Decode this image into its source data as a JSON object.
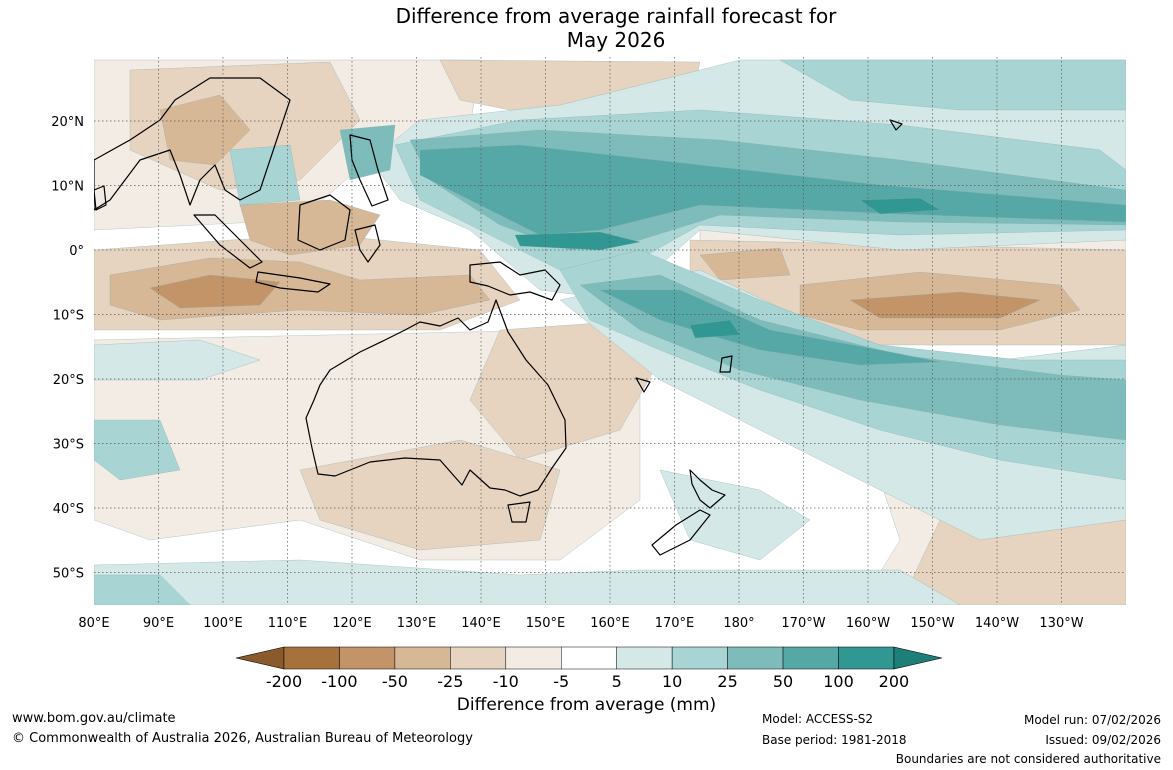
{
  "header": {
    "title_line1": "Difference from average rainfall forecast for",
    "title_line2": "May 2026"
  },
  "map": {
    "lat_labels": [
      "20°N",
      "10°N",
      "0°",
      "10°S",
      "20°S",
      "30°S",
      "40°S",
      "50°S"
    ],
    "lon_labels": [
      "80°E",
      "90°E",
      "100°E",
      "110°E",
      "120°E",
      "130°E",
      "140°E",
      "150°E",
      "160°E",
      "170°E",
      "180°",
      "170°W",
      "160°W",
      "150°W",
      "140°W",
      "130°W"
    ],
    "colors": {
      "dry_200": "#a7713c",
      "dry_100": "#c39468",
      "dry_50": "#d6b796",
      "dry_25": "#e6d4c0",
      "dry_10": "#f2ece4",
      "neutral": "#ffffff",
      "wet_10": "#d3e8e7",
      "wet_25": "#a8d5d3",
      "wet_50": "#7dbcba",
      "wet_100": "#55a8a6",
      "wet_200": "#309792",
      "wet_max": "#1e7f78"
    }
  },
  "colorbar": {
    "tick_labels": [
      "-200",
      "-100",
      "-50",
      "-25",
      "-10",
      "-5",
      "5",
      "10",
      "25",
      "50",
      "100",
      "200"
    ],
    "title": "Difference from average (mm)"
  },
  "footer": {
    "website": "www.bom.gov.au/climate",
    "copyright": "© Commonwealth of Australia 2026, Australian Bureau of Meteorology",
    "model": "Model: ACCESS-S2",
    "base_period": "Base period: 1981-2018",
    "model_run": "Model run: 07/02/2026",
    "issued": "Issued: 09/02/2026",
    "disclaimer": "Boundaries are not considered authoritative"
  }
}
